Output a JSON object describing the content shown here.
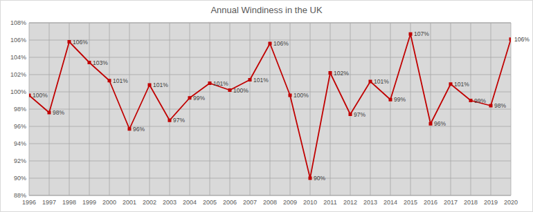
{
  "chart_data": {
    "type": "line",
    "title": "Annual Windiness in the UK",
    "categories": [
      "1996",
      "1997",
      "1998",
      "1999",
      "2000",
      "2001",
      "2002",
      "2003",
      "2004",
      "2005",
      "2006",
      "2007",
      "2008",
      "2009",
      "2010",
      "2011",
      "2012",
      "2013",
      "2014",
      "2015",
      "2016",
      "2017",
      "2018",
      "2019",
      "2020"
    ],
    "values": [
      99.6,
      97.6,
      105.8,
      103.4,
      101.3,
      95.7,
      100.8,
      96.7,
      99.3,
      101.0,
      100.2,
      101.4,
      105.6,
      99.6,
      90.0,
      102.2,
      97.4,
      101.2,
      99.1,
      106.7,
      96.3,
      100.9,
      99.0,
      98.4,
      106.1
    ],
    "value_labels": [
      "100%",
      "98%",
      "106%",
      "103%",
      "101%",
      "96%",
      "101%",
      "97%",
      "99%",
      "101%",
      "100%",
      "101%",
      "106%",
      "100%",
      "90%",
      "102%",
      "97%",
      "101%",
      "99%",
      "107%",
      "96%",
      "101%",
      "99%",
      "98%",
      "106%"
    ],
    "color": "#c00000",
    "marker": "square",
    "line_style": "solid",
    "ylim": [
      88,
      108
    ],
    "yticks": [
      {
        "value": 88,
        "label": "88%"
      },
      {
        "value": 90,
        "label": "90%"
      },
      {
        "value": 92,
        "label": "92%"
      },
      {
        "value": 94,
        "label": "94%"
      },
      {
        "value": 96,
        "label": "96%"
      },
      {
        "value": 98,
        "label": "98%"
      },
      {
        "value": 100,
        "label": "100%"
      },
      {
        "value": 102,
        "label": "102%"
      },
      {
        "value": 104,
        "label": "104%"
      },
      {
        "value": 106,
        "label": "106%"
      },
      {
        "value": 108,
        "label": "108%"
      }
    ],
    "grid": true,
    "data_labels": true
  }
}
